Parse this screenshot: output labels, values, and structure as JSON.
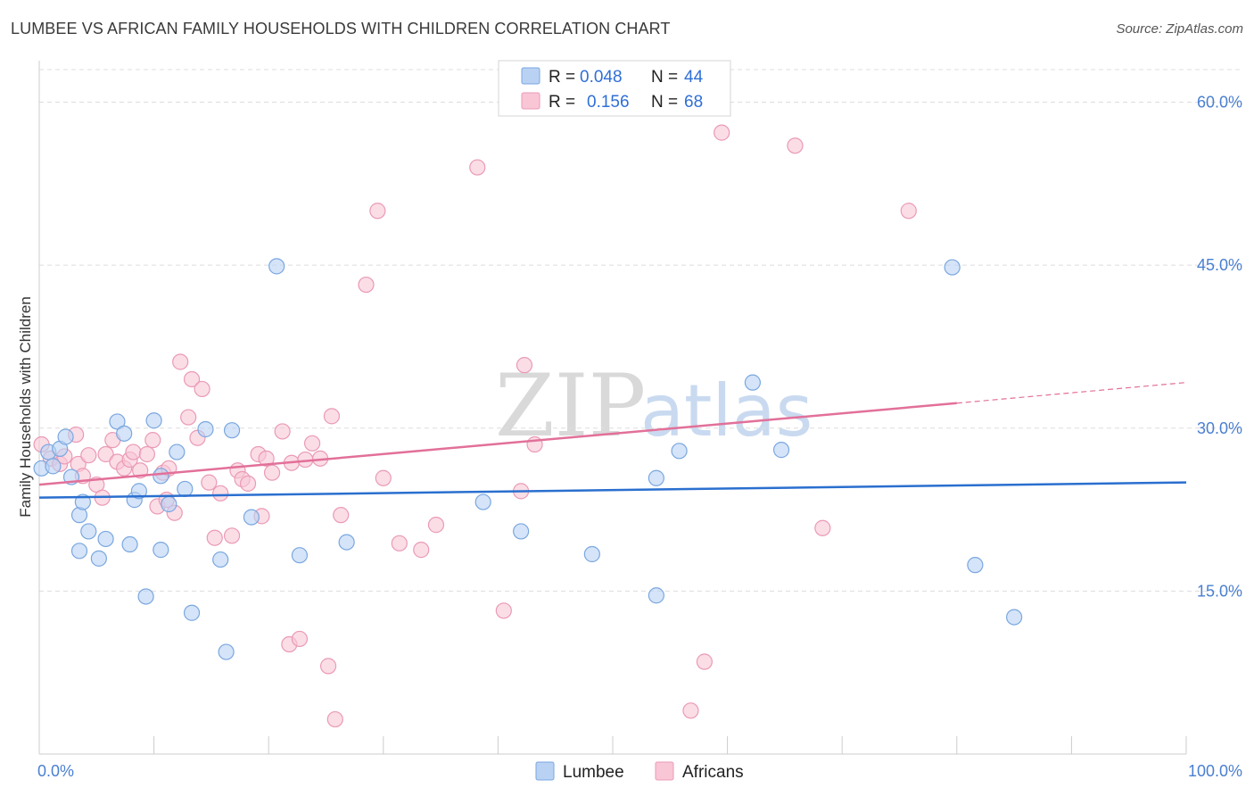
{
  "header": {
    "title": "LUMBEE VS AFRICAN FAMILY HOUSEHOLDS WITH CHILDREN CORRELATION CHART",
    "source": "Source: ZipAtlas.com"
  },
  "watermark": {
    "zip": "ZIP",
    "atlas": "atlas"
  },
  "colors": {
    "lumbee_fill": "#b9d2f3",
    "lumbee_stroke": "#7aa7e0",
    "lumbee_line": "#2a6fcf",
    "africans_fill": "#f9c6d6",
    "africans_stroke": "#ea9ab5",
    "africans_line": "#e27099",
    "tick_label": "#4a7fd0",
    "grid": "#dddddd"
  },
  "legend": {
    "rows": [
      {
        "r_label": "R =",
        "r_value": "0.048",
        "n_label": "N =",
        "n_value": "44"
      },
      {
        "r_label": "R =",
        "r_value": "0.156",
        "n_label": "N =",
        "n_value": "68"
      }
    ]
  },
  "chart_data": {
    "type": "scatter",
    "title": "LUMBEE VS AFRICAN FAMILY HOUSEHOLDS WITH CHILDREN CORRELATION CHART",
    "xlabel": "",
    "ylabel": "Family Households with Children",
    "xlim": [
      0,
      100
    ],
    "ylim": [
      0,
      63
    ],
    "x_tick_labels": [
      "0.0%",
      "100.0%"
    ],
    "y_ticks": [
      15,
      30,
      45,
      60
    ],
    "y_tick_labels": [
      "15.0%",
      "30.0%",
      "45.0%",
      "60.0%"
    ],
    "grid": true,
    "legend_position": "top-center",
    "bottom_legend": [
      "Lumbee",
      "Africans"
    ],
    "series": [
      {
        "name": "Lumbee",
        "r": 0.048,
        "n": 44,
        "trend": {
          "x": [
            0,
            100
          ],
          "y": [
            23.6,
            25.0
          ]
        },
        "points": [
          [
            0.2,
            26.3
          ],
          [
            0.8,
            27.8
          ],
          [
            1.2,
            26.5
          ],
          [
            1.8,
            28.1
          ],
          [
            2.3,
            29.2
          ],
          [
            2.8,
            25.5
          ],
          [
            3.5,
            18.7
          ],
          [
            3.5,
            22.0
          ],
          [
            3.8,
            23.2
          ],
          [
            4.3,
            20.5
          ],
          [
            5.2,
            18.0
          ],
          [
            5.8,
            19.8
          ],
          [
            6.8,
            30.6
          ],
          [
            7.4,
            29.5
          ],
          [
            7.9,
            19.3
          ],
          [
            8.3,
            23.4
          ],
          [
            8.7,
            24.2
          ],
          [
            9.3,
            14.5
          ],
          [
            10.0,
            30.7
          ],
          [
            10.6,
            18.8
          ],
          [
            10.6,
            25.6
          ],
          [
            11.3,
            23.0
          ],
          [
            12.0,
            27.8
          ],
          [
            12.7,
            24.4
          ],
          [
            13.3,
            13.0
          ],
          [
            14.5,
            29.9
          ],
          [
            15.8,
            17.9
          ],
          [
            16.3,
            9.4
          ],
          [
            16.8,
            29.8
          ],
          [
            18.5,
            21.8
          ],
          [
            20.7,
            44.9
          ],
          [
            22.7,
            18.3
          ],
          [
            26.8,
            19.5
          ],
          [
            38.7,
            23.2
          ],
          [
            42.0,
            20.5
          ],
          [
            48.2,
            18.4
          ],
          [
            53.8,
            14.6
          ],
          [
            53.8,
            25.4
          ],
          [
            55.8,
            27.9
          ],
          [
            62.2,
            34.2
          ],
          [
            64.7,
            28.0
          ],
          [
            79.6,
            44.8
          ],
          [
            81.6,
            17.4
          ],
          [
            85.0,
            12.6
          ]
        ]
      },
      {
        "name": "Africans",
        "r": 0.156,
        "n": 68,
        "trend": {
          "x": [
            0,
            80
          ],
          "y": [
            24.8,
            32.3
          ]
        },
        "trend_dashed": {
          "x": [
            80,
            100
          ],
          "y": [
            32.3,
            34.2
          ]
        },
        "points": [
          [
            0.2,
            28.5
          ],
          [
            1.0,
            27.2
          ],
          [
            1.8,
            26.7
          ],
          [
            2.2,
            27.4
          ],
          [
            3.2,
            29.4
          ],
          [
            3.4,
            26.7
          ],
          [
            3.8,
            25.6
          ],
          [
            4.3,
            27.5
          ],
          [
            5.0,
            24.8
          ],
          [
            5.5,
            23.6
          ],
          [
            5.8,
            27.6
          ],
          [
            6.4,
            28.9
          ],
          [
            6.8,
            26.9
          ],
          [
            7.4,
            26.3
          ],
          [
            7.9,
            27.1
          ],
          [
            8.2,
            27.8
          ],
          [
            8.8,
            26.1
          ],
          [
            9.4,
            27.6
          ],
          [
            9.9,
            28.9
          ],
          [
            10.3,
            22.8
          ],
          [
            10.8,
            25.9
          ],
          [
            11.1,
            23.4
          ],
          [
            11.3,
            26.3
          ],
          [
            11.8,
            22.2
          ],
          [
            12.3,
            36.1
          ],
          [
            13.0,
            31.0
          ],
          [
            13.3,
            34.5
          ],
          [
            13.8,
            29.1
          ],
          [
            14.2,
            33.6
          ],
          [
            14.8,
            25.0
          ],
          [
            15.3,
            19.9
          ],
          [
            15.8,
            24.0
          ],
          [
            16.8,
            20.1
          ],
          [
            17.3,
            26.1
          ],
          [
            17.7,
            25.3
          ],
          [
            18.2,
            24.9
          ],
          [
            19.1,
            27.6
          ],
          [
            19.4,
            21.9
          ],
          [
            19.8,
            27.2
          ],
          [
            20.3,
            25.9
          ],
          [
            21.2,
            29.7
          ],
          [
            21.8,
            10.1
          ],
          [
            22.0,
            26.8
          ],
          [
            22.7,
            10.6
          ],
          [
            23.2,
            27.1
          ],
          [
            23.8,
            28.6
          ],
          [
            24.5,
            27.2
          ],
          [
            25.2,
            8.1
          ],
          [
            25.5,
            31.1
          ],
          [
            25.8,
            3.2
          ],
          [
            26.3,
            22.0
          ],
          [
            28.5,
            43.2
          ],
          [
            29.5,
            50.0
          ],
          [
            30.0,
            25.4
          ],
          [
            31.4,
            19.4
          ],
          [
            33.3,
            18.8
          ],
          [
            34.6,
            21.1
          ],
          [
            38.2,
            54.0
          ],
          [
            40.5,
            13.2
          ],
          [
            42.0,
            24.2
          ],
          [
            42.3,
            35.8
          ],
          [
            43.2,
            28.5
          ],
          [
            56.8,
            4.0
          ],
          [
            58.0,
            8.5
          ],
          [
            59.5,
            57.2
          ],
          [
            65.9,
            56.0
          ],
          [
            68.3,
            20.8
          ],
          [
            75.8,
            50.0
          ]
        ]
      }
    ]
  }
}
